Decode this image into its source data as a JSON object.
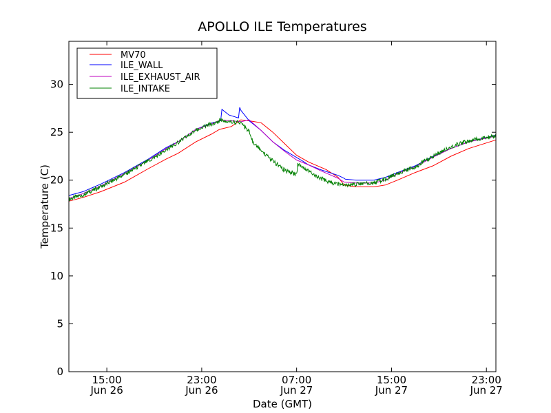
{
  "chart_data": {
    "type": "line",
    "title": "APOLLO ILE Temperatures",
    "xlabel": "Date (GMT)",
    "ylabel": "Temperature (C)",
    "x_unit": "hours",
    "x_ticks": [
      {
        "x": 15,
        "line1": "15:00",
        "line2": "Jun 26"
      },
      {
        "x": 23,
        "line1": "23:00",
        "line2": "Jun 26"
      },
      {
        "x": 31,
        "line1": "07:00",
        "line2": "Jun 27"
      },
      {
        "x": 39,
        "line1": "15:00",
        "line2": "Jun 27"
      },
      {
        "x": 47,
        "line1": "23:00",
        "line2": "Jun 27"
      }
    ],
    "xlim": [
      11.8,
      47.8
    ],
    "ylim": [
      0,
      34.5
    ],
    "y_ticks": [
      0,
      5,
      10,
      15,
      20,
      25,
      30
    ],
    "grid": false,
    "legend_position": "top-left",
    "series": [
      {
        "name": "MV70",
        "color": "#ff0000",
        "x": [
          11.8,
          13,
          14.5,
          16.5,
          18.5,
          20,
          21,
          22.5,
          23.8,
          24.5,
          25.5,
          26.3,
          27,
          28,
          29,
          30,
          31,
          32,
          33.5,
          34.5,
          35,
          36,
          37.5,
          38.5,
          39.5,
          41,
          42.5,
          44,
          45.5,
          47.8
        ],
        "values": [
          17.8,
          18.2,
          18.8,
          19.8,
          21.2,
          22.2,
          22.8,
          24.0,
          24.8,
          25.3,
          25.6,
          26.3,
          26.2,
          26.0,
          25.0,
          23.8,
          22.6,
          21.9,
          21.1,
          20.3,
          19.5,
          19.3,
          19.3,
          19.5,
          20.0,
          20.8,
          21.5,
          22.5,
          23.3,
          24.2
        ]
      },
      {
        "name": "ILE_WALL",
        "color": "#0000ff",
        "x": [
          11.8,
          13,
          14.5,
          16.5,
          18.5,
          20,
          21,
          22.5,
          23.9,
          24.6,
          24.7,
          25.3,
          26.1,
          26.2,
          26.3,
          27,
          28,
          29,
          30,
          31.5,
          32,
          33,
          34.5,
          35,
          35.1,
          36,
          37.5,
          38.5,
          39.5,
          41,
          42.5,
          44,
          45.5,
          47.8
        ],
        "values": [
          18.4,
          18.8,
          19.6,
          20.8,
          22.2,
          23.4,
          24.0,
          25.3,
          26.0,
          26.2,
          27.4,
          26.8,
          26.5,
          27.6,
          27.3,
          26.2,
          25.2,
          24.0,
          23.1,
          22.0,
          21.6,
          21.1,
          20.5,
          20.2,
          20.1,
          20.0,
          20.0,
          20.3,
          20.8,
          21.5,
          22.5,
          23.3,
          24.0,
          24.7
        ]
      },
      {
        "name": "ILE_EXHAUST_AIR",
        "color": "#bf00bf",
        "x": [
          11.8,
          13,
          14.5,
          16.5,
          18.5,
          20,
          21,
          22.5,
          23.9,
          24.6,
          25.5,
          26.3,
          27,
          28,
          29,
          30,
          31,
          32,
          33,
          34.5,
          35,
          36,
          37.5,
          38.5,
          39.5,
          41,
          42.5,
          44,
          45.5,
          47.8
        ],
        "values": [
          18.1,
          18.6,
          19.4,
          20.7,
          22.1,
          23.3,
          24.0,
          25.3,
          25.9,
          26.3,
          26.2,
          26.1,
          26.3,
          25.2,
          24.0,
          23.0,
          22.1,
          21.6,
          21.0,
          20.2,
          19.8,
          19.7,
          19.7,
          20.0,
          20.7,
          21.4,
          22.4,
          23.3,
          24.0,
          24.6
        ]
      },
      {
        "name": "ILE_INTAKE",
        "color": "#008000",
        "noisy": true,
        "x": [
          11.8,
          13,
          14.5,
          16.5,
          18.5,
          20,
          21,
          22.5,
          23.9,
          24.6,
          25.5,
          26.3,
          27,
          27.3,
          28,
          29,
          30,
          31,
          31.1,
          32,
          33,
          34,
          35,
          35.1,
          36,
          37.5,
          38.5,
          39.5,
          41,
          42.5,
          44,
          45.5,
          47.8
        ],
        "values": [
          18.0,
          18.5,
          19.3,
          20.6,
          22.0,
          23.1,
          23.9,
          25.2,
          25.9,
          26.3,
          26.1,
          26.0,
          25.0,
          24.0,
          23.1,
          22.0,
          21.0,
          20.6,
          21.7,
          21.0,
          20.2,
          19.7,
          19.5,
          19.4,
          19.6,
          19.7,
          20.1,
          20.7,
          21.4,
          22.5,
          23.5,
          24.1,
          24.6
        ]
      }
    ]
  }
}
